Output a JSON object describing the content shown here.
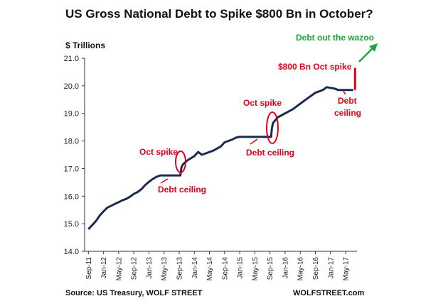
{
  "chart_data": {
    "type": "line",
    "title": "US Gross National Debt to Spike $800 Bn in October?",
    "ylabel": "$ Trillions",
    "ylim": [
      14.0,
      21.0
    ],
    "yticks": [
      "14.0",
      "15.0",
      "16.0",
      "17.0",
      "18.0",
      "19.0",
      "20.0",
      "21.0"
    ],
    "xticks": [
      "Sep-11",
      "Jan-12",
      "May-12",
      "Sep-12",
      "Jan-13",
      "May-13",
      "Sep-13",
      "Jan-14",
      "May-14",
      "Sep-14",
      "Jan-15",
      "May-15",
      "Sep-15",
      "Jan-16",
      "May-16",
      "Sep-16",
      "Jan-17",
      "May-17"
    ],
    "series": [
      {
        "values": [
          [
            0,
            14.8
          ],
          [
            1,
            14.95
          ],
          [
            2,
            15.1
          ],
          [
            3,
            15.3
          ],
          [
            4,
            15.45
          ],
          [
            5,
            15.58
          ],
          [
            6,
            15.65
          ],
          [
            7,
            15.72
          ],
          [
            8,
            15.78
          ],
          [
            9,
            15.85
          ],
          [
            10,
            15.9
          ],
          [
            11,
            15.98
          ],
          [
            12,
            16.08
          ],
          [
            13,
            16.15
          ],
          [
            14,
            16.25
          ],
          [
            15,
            16.4
          ],
          [
            16,
            16.52
          ],
          [
            17,
            16.62
          ],
          [
            18,
            16.7
          ],
          [
            19,
            16.75
          ],
          [
            20,
            16.75
          ],
          [
            21,
            16.75
          ],
          [
            24.3,
            16.75
          ],
          [
            24.6,
            17.05
          ],
          [
            25,
            17.15
          ],
          [
            26,
            17.28
          ],
          [
            28,
            17.45
          ],
          [
            29,
            17.6
          ],
          [
            30,
            17.5
          ],
          [
            31,
            17.55
          ],
          [
            33,
            17.65
          ],
          [
            35,
            17.8
          ],
          [
            36,
            17.95
          ],
          [
            38,
            18.05
          ],
          [
            39,
            18.12
          ],
          [
            40,
            18.15
          ],
          [
            48.3,
            18.15
          ],
          [
            48.5,
            18.45
          ],
          [
            48.8,
            18.65
          ],
          [
            50,
            18.85
          ],
          [
            52,
            19.0
          ],
          [
            54,
            19.15
          ],
          [
            56,
            19.35
          ],
          [
            57,
            19.45
          ],
          [
            58,
            19.55
          ],
          [
            60,
            19.75
          ],
          [
            62,
            19.85
          ],
          [
            63,
            19.95
          ],
          [
            65,
            19.9
          ],
          [
            66,
            19.85
          ],
          [
            70,
            19.85
          ]
        ]
      },
      {
        "values": [
          [
            70.5,
            19.85
          ],
          [
            70.5,
            20.65
          ]
        ]
      }
    ],
    "annotations": {
      "spike_2013": "Oct spike",
      "ceiling_2013": "Debt ceiling",
      "spike_2015": "Oct spike",
      "ceiling_2015": "Debt ceiling",
      "spike_2017": "$800 Bn Oct spike",
      "ceiling_2017_line1": "Debt",
      "ceiling_2017_line2": "ceiling",
      "wazoo": "Debt out the wazoo"
    },
    "source": "Source: US Treasury, WOLF STREET",
    "credit": "WOLFSTREET.com",
    "grid": false
  },
  "colors": {
    "line": "#1c2a4f",
    "accent": "#e3001b",
    "arrow": "#1fa33a"
  }
}
